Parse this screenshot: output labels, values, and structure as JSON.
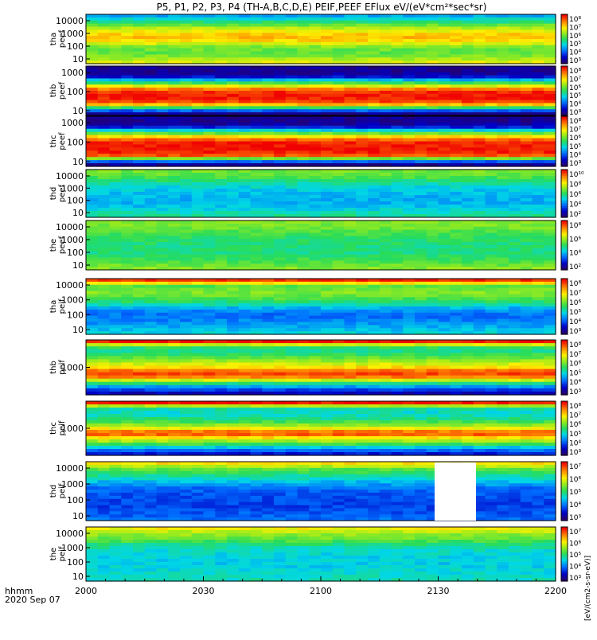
{
  "chart_data": {
    "type": "heatmap",
    "title": "P5, P1, P2, P3, P4 (TH-A,B,C,D,E) PEIF,PEEF EFlux eV/(eV*cm²*sec*sr)",
    "x_tick_labels": [
      "2000",
      "2030",
      "2100",
      "2130",
      "2200"
    ],
    "x_axis_label": "hhmm",
    "date_label": "2020 Sep 07",
    "colorbar_label": "[eV/(cm2-s-sr-eV)]",
    "panels": [
      {
        "probe": "tha",
        "species": "peef",
        "y_ticks": [
          "10000",
          "1000",
          "100",
          "10"
        ],
        "cbar_ticks": [
          "10⁸",
          "10⁷",
          "10⁶",
          "10⁵",
          "10⁴",
          "10³"
        ],
        "profile": [
          0.32,
          0.45,
          0.6,
          0.72,
          0.8,
          0.75,
          0.6,
          0.55,
          0.6,
          0.7
        ]
      },
      {
        "probe": "thb",
        "species": "peef",
        "y_ticks": [
          "1000",
          "100",
          "10"
        ],
        "cbar_ticks": [
          "10⁸",
          "10⁷",
          "10⁶",
          "10⁵",
          "10⁴",
          "10³"
        ],
        "profile": [
          0.05,
          0.05,
          0.08,
          0.35,
          0.6,
          0.85,
          0.97,
          0.98,
          0.95,
          0.75,
          0.3,
          0.05
        ]
      },
      {
        "probe": "thc",
        "species": "peef",
        "y_ticks": [
          "1000",
          "100",
          "10"
        ],
        "cbar_ticks": [
          "10⁸",
          "10⁷",
          "10⁶",
          "10⁵",
          "10⁴",
          "10³"
        ],
        "profile": [
          0.05,
          0.05,
          0.1,
          0.4,
          0.65,
          0.88,
          0.98,
          0.98,
          0.97,
          0.9,
          0.3,
          0.05
        ]
      },
      {
        "probe": "thd",
        "species": "peef",
        "y_ticks": [
          "10000",
          "1000",
          "100",
          "10"
        ],
        "cbar_ticks": [
          "10¹⁰",
          "10⁸",
          "10⁶",
          "10⁴",
          "10²"
        ],
        "profile": [
          0.58,
          0.55,
          0.47,
          0.4,
          0.36,
          0.34,
          0.33,
          0.35,
          0.4,
          0.45
        ]
      },
      {
        "probe": "the",
        "species": "peef",
        "y_ticks": [
          "10000",
          "1000",
          "100",
          "10"
        ],
        "cbar_ticks": [
          "10⁸",
          "10⁶",
          "10⁴",
          "10²"
        ],
        "profile": [
          0.6,
          0.58,
          0.54,
          0.5,
          0.48,
          0.47,
          0.47,
          0.5,
          0.55,
          0.6
        ]
      },
      {
        "probe": "tha",
        "species": "peif",
        "y_ticks": [
          "10000",
          "1000",
          "100",
          "10"
        ],
        "cbar_ticks": [
          "10⁸",
          "10⁷",
          "10⁶",
          "10⁵",
          "10⁴",
          "10³"
        ],
        "profile": [
          0.95,
          0.55,
          0.6,
          0.55,
          0.45,
          0.3,
          0.25,
          0.28,
          0.33,
          0.38
        ]
      },
      {
        "probe": "thb",
        "species": "peif",
        "y_ticks": [
          "1000"
        ],
        "cbar_ticks": [
          "10⁸",
          "10⁷",
          "10⁶",
          "10⁵",
          "10⁴",
          "10³"
        ],
        "profile": [
          0.98,
          0.5,
          0.45,
          0.55,
          0.65,
          0.75,
          0.95,
          0.85,
          0.5,
          0.25,
          0.1
        ]
      },
      {
        "probe": "thc",
        "species": "peif",
        "y_ticks": [
          "1000"
        ],
        "cbar_ticks": [
          "10⁸",
          "10⁷",
          "10⁶",
          "10⁵",
          "10⁴",
          "10³"
        ],
        "profile": [
          0.98,
          0.45,
          0.4,
          0.45,
          0.55,
          0.72,
          0.95,
          0.72,
          0.55,
          0.3,
          0.15
        ]
      },
      {
        "probe": "thd",
        "species": "peif",
        "y_ticks": [
          "10000",
          "1000",
          "100",
          "10"
        ],
        "cbar_ticks": [
          "10⁷",
          "10⁶",
          "10⁵",
          "10⁴",
          "10³"
        ],
        "profile": [
          0.75,
          0.55,
          0.45,
          0.35,
          0.25,
          0.22,
          0.2,
          0.2,
          0.22,
          0.25
        ]
      },
      {
        "probe": "the",
        "species": "peif",
        "y_ticks": [
          "10000",
          "1000",
          "100",
          "10"
        ],
        "cbar_ticks": [
          "10⁷",
          "10⁶",
          "10⁵",
          "10⁴",
          "10³"
        ],
        "profile": [
          0.72,
          0.62,
          0.55,
          0.45,
          0.4,
          0.38,
          0.37,
          0.38,
          0.4,
          0.42
        ]
      }
    ]
  }
}
